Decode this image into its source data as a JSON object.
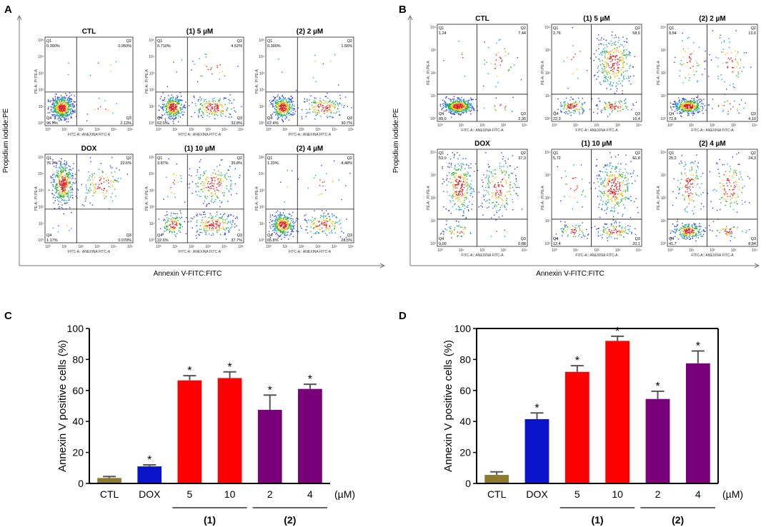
{
  "panelA": {
    "letter": "A",
    "ylabel": "Propidium iodide:PE",
    "xlabel": "Annexin V-FITC:FITC",
    "plot_ylabel": "PE-A:: PI PE-A",
    "plot_xlabel": "FITC-A:: ANEXINA FITC-A",
    "plots": [
      {
        "title": "CTL",
        "q1": "0.390%",
        "q2": "0.950%",
        "q3": "2.12%",
        "q4": "96.5%"
      },
      {
        "title": "(1) 5 µM",
        "q1": "0.710%",
        "q2": "4.52%",
        "q3": "32.8%",
        "q4": "62.0%"
      },
      {
        "title": "(2) 2 µM",
        "q1": "0.390%",
        "q2": "1.56%",
        "q3": "30.7%",
        "q4": "67.4%"
      },
      {
        "title": "DOX",
        "q1": "76.2%",
        "q2": "22.6%",
        "q3": "0.070%",
        "q4": "1.17%"
      },
      {
        "title": "(1) 10 µM",
        "q1": "3.87%",
        "q2": "35.8%",
        "q3": "37.7%",
        "q4": "22.6%"
      },
      {
        "title": "(2) 4 µM",
        "q1": "1.20%",
        "q2": "4.48%",
        "q3": "28.5%",
        "q4": "65.8%"
      }
    ]
  },
  "panelB": {
    "letter": "B",
    "ylabel": "Propidium iodide:PE",
    "xlabel": "Annexin V-FITC:FITC",
    "plot_ylabel": "PE-A:: PI PE-A",
    "plot_xlabel": "FITC-A:: ANEXINA FITC-A",
    "plots": [
      {
        "title": "CTL",
        "q1": "1,24",
        "q2": "7,44",
        "q3": "2,30",
        "q4": "89,0"
      },
      {
        "title": "(1) 5 µM",
        "q1": "2,76",
        "q2": "58,5",
        "q3": "16,4",
        "q4": "22,3"
      },
      {
        "title": "(2) 2 µM",
        "q1": "9,54",
        "q2": "13,6",
        "q3": "4,10",
        "q4": "72,8"
      },
      {
        "title": "DOX",
        "q1": "53,0",
        "q2": "37,3",
        "q3": "0,88",
        "q4": "9,00"
      },
      {
        "title": "(1) 10 µM",
        "q1": "5,72",
        "q2": "61,8",
        "q3": "20,1",
        "q4": "12,4"
      },
      {
        "title": "(2) 4 µM",
        "q1": "25,2",
        "q2": "24,3",
        "q3": "8,84",
        "q4": "41,7"
      }
    ]
  },
  "chart_data": [
    {
      "panel": "C",
      "type": "bar",
      "ylabel": "Annexin V positive cells (%)",
      "ylim": [
        0,
        100
      ],
      "yticks": [
        "0",
        "20",
        "40",
        "60",
        "80",
        "100"
      ],
      "unit_label": "(µM)",
      "categories": [
        "CTL",
        "DOX",
        "5",
        "10",
        "2",
        "4"
      ],
      "values": [
        3.5,
        11,
        66.5,
        68,
        47.5,
        61
      ],
      "errors": [
        1,
        1,
        3,
        4,
        9.5,
        3
      ],
      "significant": [
        false,
        true,
        true,
        true,
        true,
        true
      ],
      "star": "*",
      "colors": [
        "#8c7a2e",
        "#0a14c8",
        "#ff0000",
        "#ff0000",
        "#7a007a",
        "#7a007a"
      ],
      "groups": [
        {
          "label": "(1)",
          "start": 2,
          "end": 3
        },
        {
          "label": "(2)",
          "start": 4,
          "end": 5
        }
      ]
    },
    {
      "panel": "D",
      "type": "bar",
      "ylabel": "Annexin V positive cells (%)",
      "ylim": [
        0,
        100
      ],
      "yticks": [
        "0",
        "20",
        "40",
        "60",
        "80",
        "100"
      ],
      "unit_label": "(µM)",
      "categories": [
        "CTL",
        "DOX",
        "5",
        "10",
        "2",
        "4"
      ],
      "values": [
        5.5,
        41.5,
        72,
        92,
        54.5,
        77.5
      ],
      "errors": [
        2,
        4,
        4,
        3,
        5,
        8
      ],
      "significant": [
        false,
        true,
        true,
        true,
        true,
        true
      ],
      "star": "*",
      "colors": [
        "#8c7a2e",
        "#0a14c8",
        "#ff0000",
        "#ff0000",
        "#7a007a",
        "#7a007a"
      ],
      "groups": [
        {
          "label": "(1)",
          "start": 2,
          "end": 3
        },
        {
          "label": "(2)",
          "start": 4,
          "end": 5
        }
      ]
    }
  ]
}
